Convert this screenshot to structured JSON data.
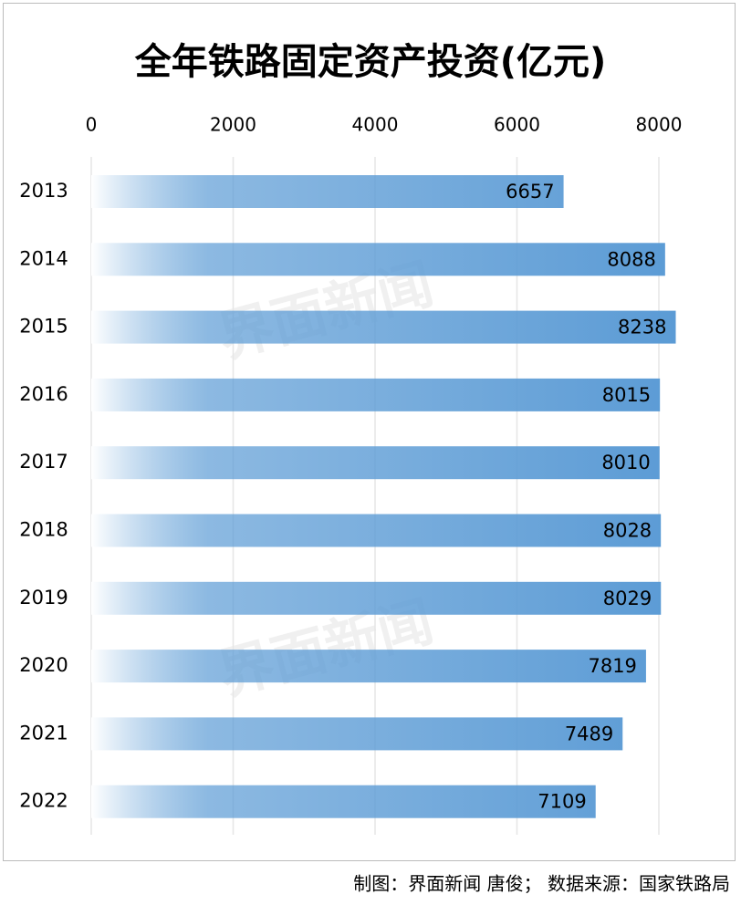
{
  "chart_data": {
    "type": "bar",
    "orientation": "horizontal",
    "title": "全年铁路固定资产投资(亿元)",
    "categories": [
      "2013",
      "2014",
      "2015",
      "2016",
      "2017",
      "2018",
      "2019",
      "2020",
      "2021",
      "2022"
    ],
    "values": [
      6657,
      8088,
      8238,
      8015,
      8010,
      8028,
      8029,
      7819,
      7489,
      7109
    ],
    "color": "#5b9bd5",
    "xlim": [
      0,
      8000
    ],
    "xticks": [
      0,
      2000,
      4000,
      6000,
      8000
    ],
    "grid": true,
    "watermark": "界面新闻",
    "source": "制图：界面新闻 唐俊；  数据来源：国家铁路局"
  }
}
